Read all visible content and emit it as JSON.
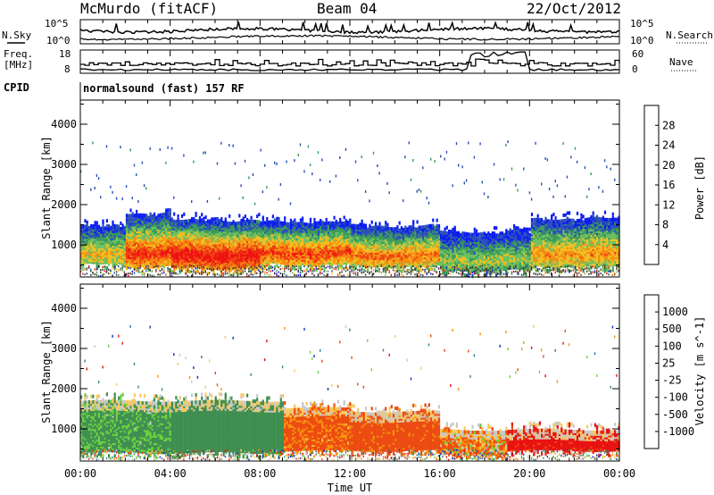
{
  "header": {
    "station": "McMurdo (fitACF)",
    "beam": "Beam 04",
    "date": "22/Oct/2012"
  },
  "noise_panel": {
    "left_label": "N.Sky",
    "left_ticks": [
      "10^5",
      "10^0"
    ],
    "right_label": "N.Search",
    "right_ticks": [
      "10^5",
      "10^0"
    ]
  },
  "freq_panel": {
    "left_label_1": "Freq.",
    "left_label_2": "[MHz]",
    "left_ticks": [
      "18",
      "8"
    ],
    "right_label": "Nave",
    "right_ticks": [
      "60",
      "0"
    ]
  },
  "cpid": {
    "label": "CPID",
    "value": "normalsound (fast) 157 RF"
  },
  "colors": {
    "power": [
      "#0a1cf0",
      "#2b4fb8",
      "#3a9a58",
      "#6cc060",
      "#f0c020",
      "#f58a10",
      "#f04010",
      "#ee1010"
    ],
    "velocity": [
      "#e81010",
      "#ec4a10",
      "#f5920e",
      "#f8c860",
      "#c8c8c8",
      "#6cd040",
      "#3e8e50",
      "#2e7a9a",
      "#1030c0"
    ]
  },
  "chart_data": [
    {
      "type": "heatmap",
      "title": "",
      "xlabel": "",
      "ylabel": "Slant Range [km]",
      "x_ticks": [
        "00:00",
        "04:00",
        "08:00",
        "12:00",
        "16:00",
        "20:00",
        "00:00"
      ],
      "y_ticks": [
        "1000",
        "2000",
        "3000",
        "4000"
      ],
      "ylim": [
        200,
        4600
      ],
      "colorbar": {
        "label": "Power [dB]",
        "ticks": [
          "4",
          "8",
          "12",
          "16",
          "20",
          "24",
          "28"
        ],
        "range": [
          0,
          32
        ]
      },
      "bands": [
        {
          "start_h": 0.0,
          "end_h": 2.0,
          "lower_km": 550,
          "upper_km": 1500,
          "peak_db": 20
        },
        {
          "start_h": 2.0,
          "end_h": 4.0,
          "lower_km": 500,
          "upper_km": 1800,
          "peak_db": 28
        },
        {
          "start_h": 4.0,
          "end_h": 8.0,
          "lower_km": 450,
          "upper_km": 1650,
          "peak_db": 31
        },
        {
          "start_h": 8.0,
          "end_h": 12.0,
          "lower_km": 550,
          "upper_km": 1600,
          "peak_db": 27
        },
        {
          "start_h": 12.0,
          "end_h": 16.0,
          "lower_km": 500,
          "upper_km": 1500,
          "peak_db": 24
        },
        {
          "start_h": 16.0,
          "end_h": 20.0,
          "lower_km": 400,
          "upper_km": 1350,
          "peak_db": 16
        },
        {
          "start_h": 20.0,
          "end_h": 24.0,
          "lower_km": 500,
          "upper_km": 1700,
          "peak_db": 22
        }
      ]
    },
    {
      "type": "heatmap",
      "title": "",
      "xlabel": "Time UT",
      "ylabel": "Slant Range [km]",
      "x_ticks": [
        "00:00",
        "04:00",
        "08:00",
        "12:00",
        "16:00",
        "20:00",
        "00:00"
      ],
      "y_ticks": [
        "1000",
        "2000",
        "3000",
        "4000"
      ],
      "ylim": [
        200,
        4600
      ],
      "colorbar": {
        "label": "Velocity [m s^-1]",
        "ticks": [
          "1000",
          "500",
          "100",
          "25",
          "-25",
          "-100",
          "-500",
          "-1000"
        ]
      },
      "bands": [
        {
          "start_h": 0.0,
          "end_h": 4.0,
          "lower_km": 450,
          "upper_km": 1700,
          "dominant_velocity_ms": 150
        },
        {
          "start_h": 4.0,
          "end_h": 9.0,
          "lower_km": 450,
          "upper_km": 1700,
          "dominant_velocity_ms": 300
        },
        {
          "start_h": 9.0,
          "end_h": 12.0,
          "lower_km": 500,
          "upper_km": 1550,
          "dominant_velocity_ms": -150
        },
        {
          "start_h": 12.0,
          "end_h": 16.0,
          "lower_km": 500,
          "upper_km": 1450,
          "dominant_velocity_ms": -200
        },
        {
          "start_h": 16.0,
          "end_h": 19.0,
          "lower_km": 400,
          "upper_km": 1000,
          "dominant_velocity_ms": -80
        },
        {
          "start_h": 19.0,
          "end_h": 24.0,
          "lower_km": 500,
          "upper_km": 1000,
          "dominant_velocity_ms": -600
        }
      ]
    }
  ]
}
